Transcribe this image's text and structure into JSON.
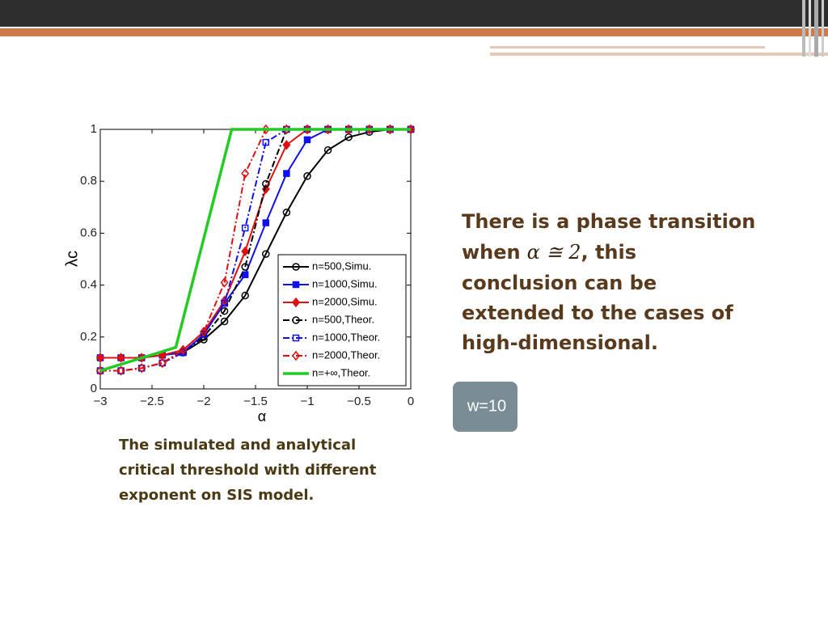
{
  "chart_data": {
    "type": "line",
    "xlabel": "α",
    "ylabel": "λc",
    "x": [
      -3,
      -2.8,
      -2.6,
      -2.4,
      -2.2,
      -2,
      -1.8,
      -1.6,
      -1.4,
      -1.2,
      -1,
      -0.8,
      -0.6,
      -0.4,
      -0.2,
      0
    ],
    "xlim": [
      -3,
      0
    ],
    "xticks": [
      {
        "value": -3,
        "label": "−3"
      },
      {
        "value": -2.5,
        "label": "−2.5"
      },
      {
        "value": -2,
        "label": "−2"
      },
      {
        "value": -1.5,
        "label": "−1.5"
      },
      {
        "value": -1,
        "label": "−1"
      },
      {
        "value": -0.5,
        "label": "−0.5"
      },
      0
    ],
    "ylim": [
      0,
      1
    ],
    "yticks": [
      0,
      0.2,
      0.4,
      0.6,
      0.8,
      1
    ],
    "legend": "lower right",
    "series": [
      {
        "name": "n=500,Simu.",
        "color": "#000000",
        "marker": "circle",
        "filled": false,
        "dash": "solid",
        "values": [
          0.12,
          0.12,
          0.12,
          0.13,
          0.14,
          0.19,
          0.26,
          0.36,
          0.52,
          0.68,
          0.82,
          0.92,
          0.97,
          0.99,
          1,
          1
        ]
      },
      {
        "name": "n=1000,Simu.",
        "color": "#1010ee",
        "marker": "square",
        "filled": true,
        "dash": "solid",
        "values": [
          0.12,
          0.12,
          0.12,
          0.13,
          0.14,
          0.21,
          0.33,
          0.44,
          0.64,
          0.83,
          0.96,
          1,
          1,
          1,
          1,
          1
        ]
      },
      {
        "name": "n=2000,Simu.",
        "color": "#e01010",
        "marker": "diamond",
        "filled": true,
        "dash": "solid",
        "values": [
          0.12,
          0.12,
          0.12,
          0.13,
          0.15,
          0.22,
          0.34,
          0.53,
          0.77,
          0.94,
          1,
          1,
          1,
          1,
          1,
          1
        ]
      },
      {
        "name": "n=500,Theor.",
        "color": "#000000",
        "marker": "circle",
        "filled": false,
        "dash": "dashdot",
        "values": [
          0.07,
          0.07,
          0.08,
          0.1,
          0.14,
          0.2,
          0.3,
          0.47,
          0.79,
          1,
          1,
          1,
          1,
          1,
          1,
          1
        ]
      },
      {
        "name": "n=1000,Theor.",
        "color": "#1010ee",
        "marker": "square",
        "filled": false,
        "dash": "dashdot",
        "values": [
          0.07,
          0.07,
          0.08,
          0.1,
          0.14,
          0.21,
          0.33,
          0.62,
          0.95,
          1,
          1,
          1,
          1,
          1,
          1,
          1
        ]
      },
      {
        "name": "n=2000,Theor.",
        "color": "#e01010",
        "marker": "diamond",
        "filled": false,
        "dash": "dashdot",
        "values": [
          0.07,
          0.07,
          0.08,
          0.1,
          0.15,
          0.22,
          0.41,
          0.83,
          1,
          1,
          1,
          1,
          1,
          1,
          1,
          1
        ]
      },
      {
        "name": "n=+∞,Theor.",
        "color": "#22cc22",
        "marker": "none",
        "filled": false,
        "dash": "solid",
        "x": [
          -3,
          -2.27,
          -1.73,
          0
        ],
        "values": [
          0.07,
          0.16,
          1,
          1
        ]
      }
    ]
  },
  "text": {
    "before": "There is a phase transition",
    "when": "when",
    "math": "α ≅ 2",
    "after1": ", this",
    "after2": "conclusion can be",
    "after3": "extended to the cases of",
    "after4": "high-dimensional."
  },
  "caption": [
    "The simulated and analytical",
    "critical threshold with different",
    "exponent on SIS model."
  ],
  "badge": "w=10"
}
